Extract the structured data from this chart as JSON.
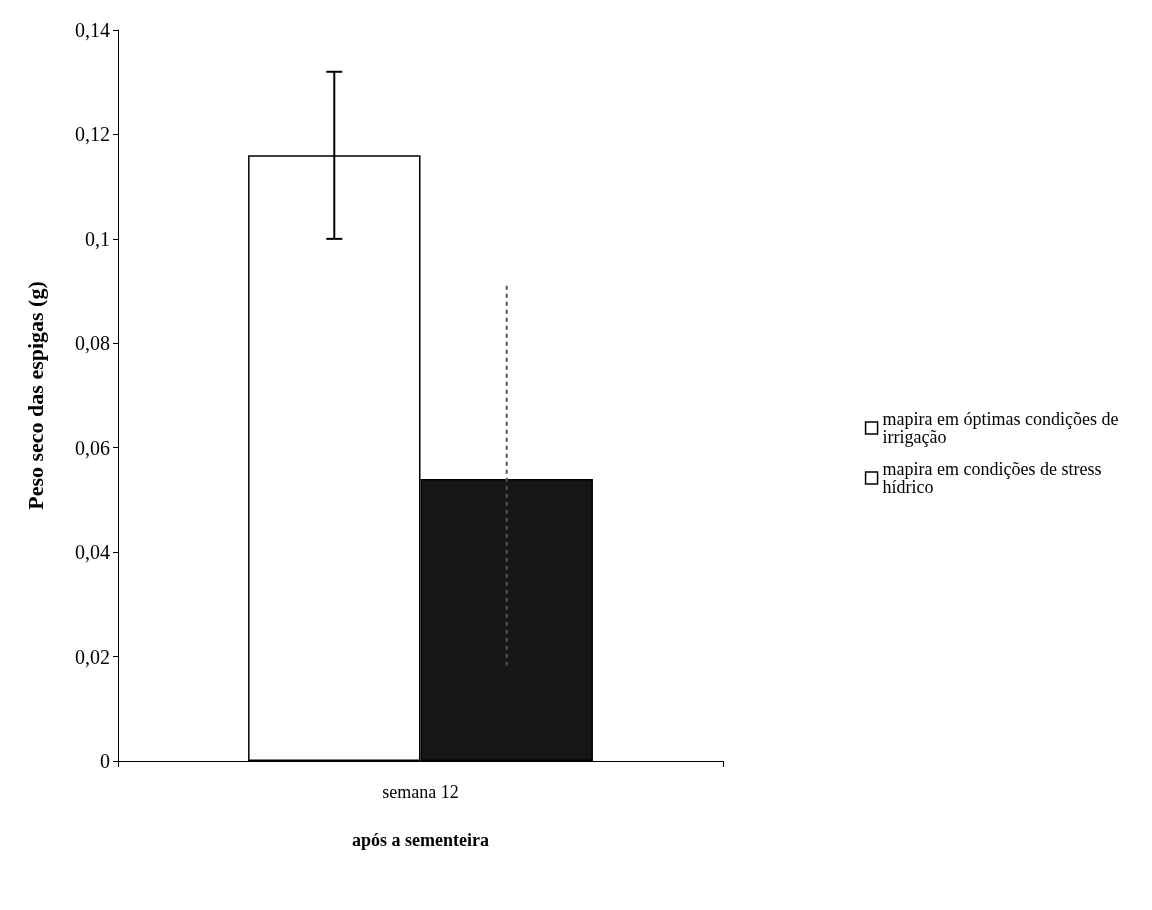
{
  "chart_data": {
    "type": "bar",
    "xlabel": "após a sementeira",
    "ylabel": "Peso seco das espigas (g)",
    "categories": [
      "semana 12"
    ],
    "series": [
      {
        "name": "mapira em óptimas condições de irrigação",
        "color": "#ffffff",
        "values": [
          0.116
        ],
        "errors": [
          [
            0.1,
            0.132
          ]
        ]
      },
      {
        "name": "mapira em condições de stress hídrico",
        "color": "#161616",
        "values": [
          0.054
        ],
        "errors": [
          [
            0.018,
            0.091
          ]
        ]
      }
    ],
    "ylim": [
      0,
      0.14
    ],
    "yticks": [
      {
        "value": 0,
        "label": "0"
      },
      {
        "value": 0.02,
        "label": "0,02"
      },
      {
        "value": 0.04,
        "label": "0,04"
      },
      {
        "value": 0.06,
        "label": "0,06"
      },
      {
        "value": 0.08,
        "label": "0,08"
      },
      {
        "value": 0.1,
        "label": "0,1"
      },
      {
        "value": 0.12,
        "label": "0,12"
      },
      {
        "value": 0.14,
        "label": "0,14"
      }
    ],
    "grid": false,
    "legend": "right"
  }
}
